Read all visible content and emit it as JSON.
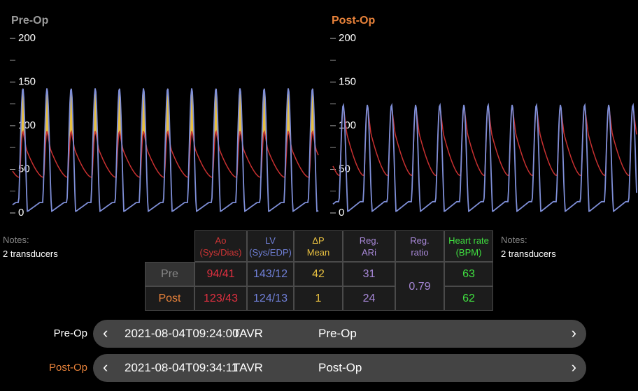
{
  "panels": [
    {
      "title": "Pre-Op",
      "ylim": [
        0,
        200
      ],
      "yticks": [
        0,
        50,
        100,
        150,
        200
      ],
      "notes_label": "Notes:",
      "notes": "2 transducers"
    },
    {
      "title": "Post-Op",
      "ylim": [
        0,
        200
      ],
      "yticks": [
        0,
        50,
        100,
        150,
        200
      ],
      "notes_label": "Notes:",
      "notes": "2 transducers"
    }
  ],
  "table": {
    "headers": [
      [
        "Ao",
        "(Sys/Dias)"
      ],
      [
        "LV",
        "(Sys/EDP)"
      ],
      [
        "ΔP",
        "Mean"
      ],
      [
        "Reg.",
        "ARi"
      ],
      [
        "Reg.",
        "ratio"
      ],
      [
        "Heart rate",
        "(BPM)"
      ]
    ],
    "rows": [
      {
        "label": "Pre",
        "cells": [
          "94/41",
          "143/12",
          42,
          31,
          63
        ]
      },
      {
        "label": "Post",
        "cells": [
          "123/43",
          "124/13",
          1,
          24,
          62
        ]
      }
    ],
    "reg_ratio": 0.79
  },
  "sessions": [
    {
      "label": "Pre-Op",
      "date": "2021-08-04T09:24:00",
      "procedure": "TAVR",
      "name": "Pre-Op"
    },
    {
      "label": "Post-Op",
      "date": "2021-08-04T09:34:11",
      "procedure": "TAVR",
      "name": "Post-Op"
    }
  ]
}
